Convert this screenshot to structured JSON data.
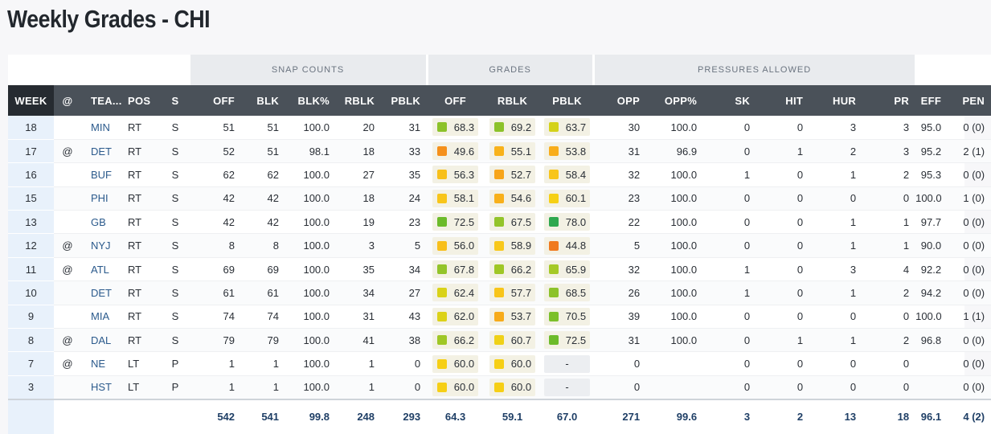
{
  "title": "Weekly Grades - CHI",
  "groups": {
    "snap_counts": "SNAP COUNTS",
    "grades": "GRADES",
    "pressures_allowed": "PRESSURES ALLOWED"
  },
  "columns": [
    "WEEK",
    "@",
    "TEA...",
    "POS",
    "S",
    "OFF",
    "BLK",
    "BLK%",
    "RBLK",
    "PBLK",
    "OFF",
    "RBLK",
    "PBLK",
    "OPP",
    "OPP%",
    "SK",
    "HIT",
    "HUR",
    "PR",
    "EFF",
    "PEN"
  ],
  "colors": {
    "grade_green": "#2fa84f",
    "grade_lightgreen": "#7cc02a",
    "grade_yellowgreen": "#c9d21c",
    "grade_yellow": "#f6c915",
    "grade_orange": "#f59a16"
  },
  "rows": [
    {
      "week": "18",
      "at": "",
      "team": "MIN",
      "pos": "RT",
      "s": "S",
      "off": "51",
      "blk": "51",
      "blk_pct": "100.0",
      "rblk": "20",
      "pblk": "31",
      "g_off": "68.3",
      "g_off_color": "#8cc22a",
      "g_rblk": "69.2",
      "g_rblk_color": "#8cc22a",
      "g_pblk": "63.7",
      "g_pblk_color": "#d4d219",
      "opp": "30",
      "opp_pct": "100.0",
      "sk": "0",
      "hit": "0",
      "hur": "3",
      "pr": "3",
      "eff": "95.0",
      "pen": "0 (0)"
    },
    {
      "week": "17",
      "at": "@",
      "team": "DET",
      "pos": "RT",
      "s": "S",
      "off": "52",
      "blk": "51",
      "blk_pct": "98.1",
      "rblk": "18",
      "pblk": "33",
      "g_off": "49.6",
      "g_off_color": "#f5901a",
      "g_rblk": "55.1",
      "g_rblk_color": "#f8b21a",
      "g_pblk": "53.8",
      "g_pblk_color": "#f8ad1a",
      "opp": "31",
      "opp_pct": "96.9",
      "sk": "0",
      "hit": "1",
      "hur": "2",
      "pr": "3",
      "eff": "95.2",
      "pen": "2 (1)"
    },
    {
      "week": "16",
      "at": "",
      "team": "BUF",
      "pos": "RT",
      "s": "S",
      "off": "62",
      "blk": "62",
      "blk_pct": "100.0",
      "rblk": "27",
      "pblk": "35",
      "g_off": "56.3",
      "g_off_color": "#f8c01a",
      "g_rblk": "52.7",
      "g_rblk_color": "#f7a51a",
      "g_pblk": "58.4",
      "g_pblk_color": "#f8c51a",
      "opp": "32",
      "opp_pct": "100.0",
      "sk": "1",
      "hit": "0",
      "hur": "1",
      "pr": "2",
      "eff": "95.3",
      "pen": "0 (0)"
    },
    {
      "week": "15",
      "at": "",
      "team": "PHI",
      "pos": "RT",
      "s": "S",
      "off": "42",
      "blk": "42",
      "blk_pct": "100.0",
      "rblk": "18",
      "pblk": "24",
      "g_off": "58.1",
      "g_off_color": "#f8c51a",
      "g_rblk": "54.6",
      "g_rblk_color": "#f8b01a",
      "g_pblk": "60.1",
      "g_pblk_color": "#f6d015",
      "opp": "23",
      "opp_pct": "100.0",
      "sk": "0",
      "hit": "0",
      "hur": "0",
      "pr": "0",
      "eff": "100.0",
      "pen": "1 (0)"
    },
    {
      "week": "13",
      "at": "",
      "team": "GB",
      "pos": "RT",
      "s": "S",
      "off": "42",
      "blk": "42",
      "blk_pct": "100.0",
      "rblk": "19",
      "pblk": "23",
      "g_off": "72.5",
      "g_off_color": "#6cbb2a",
      "g_rblk": "67.5",
      "g_rblk_color": "#93c42a",
      "g_pblk": "78.0",
      "g_pblk_color": "#2fa84f",
      "opp": "22",
      "opp_pct": "100.0",
      "sk": "0",
      "hit": "0",
      "hur": "1",
      "pr": "1",
      "eff": "97.7",
      "pen": "0 (0)"
    },
    {
      "week": "12",
      "at": "@",
      "team": "NYJ",
      "pos": "RT",
      "s": "S",
      "off": "8",
      "blk": "8",
      "blk_pct": "100.0",
      "rblk": "3",
      "pblk": "5",
      "g_off": "56.0",
      "g_off_color": "#f8bf1a",
      "g_rblk": "58.9",
      "g_rblk_color": "#f8c81a",
      "g_pblk": "44.8",
      "g_pblk_color": "#f07a1e",
      "opp": "5",
      "opp_pct": "100.0",
      "sk": "0",
      "hit": "0",
      "hur": "1",
      "pr": "1",
      "eff": "90.0",
      "pen": "0 (0)"
    },
    {
      "week": "11",
      "at": "@",
      "team": "ATL",
      "pos": "RT",
      "s": "S",
      "off": "69",
      "blk": "69",
      "blk_pct": "100.0",
      "rblk": "35",
      "pblk": "34",
      "g_off": "67.8",
      "g_off_color": "#93c42a",
      "g_rblk": "66.2",
      "g_rblk_color": "#9fc726",
      "g_pblk": "65.9",
      "g_pblk_color": "#a5c926",
      "opp": "32",
      "opp_pct": "100.0",
      "sk": "1",
      "hit": "0",
      "hur": "3",
      "pr": "4",
      "eff": "92.2",
      "pen": "0 (0)"
    },
    {
      "week": "10",
      "at": "",
      "team": "DET",
      "pos": "RT",
      "s": "S",
      "off": "61",
      "blk": "61",
      "blk_pct": "100.0",
      "rblk": "34",
      "pblk": "27",
      "g_off": "62.4",
      "g_off_color": "#d9d218",
      "g_rblk": "57.7",
      "g_rblk_color": "#f8c51a",
      "g_pblk": "68.5",
      "g_pblk_color": "#8cc22a",
      "opp": "26",
      "opp_pct": "100.0",
      "sk": "1",
      "hit": "0",
      "hur": "1",
      "pr": "2",
      "eff": "94.2",
      "pen": "0 (0)"
    },
    {
      "week": "9",
      "at": "",
      "team": "MIA",
      "pos": "RT",
      "s": "S",
      "off": "74",
      "blk": "74",
      "blk_pct": "100.0",
      "rblk": "31",
      "pblk": "43",
      "g_off": "62.0",
      "g_off_color": "#dcd218",
      "g_rblk": "53.7",
      "g_rblk_color": "#f7ab1a",
      "g_pblk": "70.5",
      "g_pblk_color": "#7cc02a",
      "opp": "39",
      "opp_pct": "100.0",
      "sk": "0",
      "hit": "0",
      "hur": "0",
      "pr": "0",
      "eff": "100.0",
      "pen": "1 (1)"
    },
    {
      "week": "8",
      "at": "@",
      "team": "DAL",
      "pos": "RT",
      "s": "S",
      "off": "79",
      "blk": "79",
      "blk_pct": "100.0",
      "rblk": "41",
      "pblk": "38",
      "g_off": "66.2",
      "g_off_color": "#9fc726",
      "g_rblk": "60.7",
      "g_rblk_color": "#efd117",
      "g_pblk": "72.5",
      "g_pblk_color": "#6cbb2a",
      "opp": "31",
      "opp_pct": "100.0",
      "sk": "0",
      "hit": "1",
      "hur": "1",
      "pr": "2",
      "eff": "96.8",
      "pen": "0 (0)"
    },
    {
      "week": "7",
      "at": "@",
      "team": "NE",
      "pos": "LT",
      "s": "P",
      "off": "1",
      "blk": "1",
      "blk_pct": "100.0",
      "rblk": "1",
      "pblk": "0",
      "g_off": "60.0",
      "g_off_color": "#f6cf15",
      "g_rblk": "60.0",
      "g_rblk_color": "#f6cf15",
      "g_pblk": "-",
      "g_pblk_color": "",
      "opp": "0",
      "opp_pct": "",
      "sk": "0",
      "hit": "0",
      "hur": "0",
      "pr": "0",
      "eff": "",
      "pen": "0 (0)"
    },
    {
      "week": "3",
      "at": "",
      "team": "HST",
      "pos": "LT",
      "s": "P",
      "off": "1",
      "blk": "1",
      "blk_pct": "100.0",
      "rblk": "1",
      "pblk": "0",
      "g_off": "60.0",
      "g_off_color": "#f6cf15",
      "g_rblk": "60.0",
      "g_rblk_color": "#f6cf15",
      "g_pblk": "-",
      "g_pblk_color": "",
      "opp": "0",
      "opp_pct": "",
      "sk": "0",
      "hit": "0",
      "hur": "0",
      "pr": "0",
      "eff": "",
      "pen": "0 (0)"
    }
  ],
  "totals": {
    "off": "542",
    "blk": "541",
    "blk_pct": "99.8",
    "rblk": "248",
    "pblk": "293",
    "g_off": "64.3",
    "g_rblk": "59.1",
    "g_pblk": "67.0",
    "opp": "271",
    "opp_pct": "99.6",
    "sk": "3",
    "hit": "2",
    "hur": "13",
    "pr": "18",
    "eff": "96.1",
    "pen": "4 (2)"
  }
}
